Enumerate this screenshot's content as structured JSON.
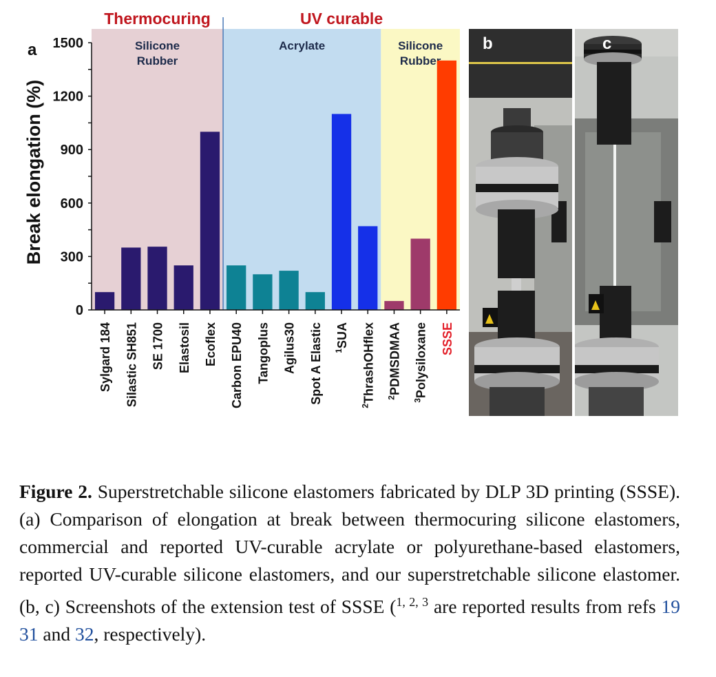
{
  "chart_data": {
    "type": "bar",
    "panel_label": "a",
    "ylabel": "Break elongation (%)",
    "ylim": [
      0,
      1500
    ],
    "yticks": [
      0,
      300,
      600,
      900,
      1200,
      1500
    ],
    "grid": false,
    "legend": "none",
    "categories": [
      {
        "sup": "",
        "text": "Sylgard 184"
      },
      {
        "sup": "",
        "text": "Silastic SH851"
      },
      {
        "sup": "",
        "text": "SE 1700"
      },
      {
        "sup": "",
        "text": "Elastosil"
      },
      {
        "sup": "",
        "text": "Ecoflex"
      },
      {
        "sup": "",
        "text": "Carbon EPU40"
      },
      {
        "sup": "",
        "text": "Tangoplus"
      },
      {
        "sup": "",
        "text": "Agilus30"
      },
      {
        "sup": "",
        "text": "Spot A Elastic"
      },
      {
        "sup": "1",
        "text": "SUA"
      },
      {
        "sup": "2",
        "text": "ThrashOHflex"
      },
      {
        "sup": "2",
        "text": "PDMSDMAA"
      },
      {
        "sup": "3",
        "text": "Polysiloxane"
      },
      {
        "sup": "",
        "text": "SSSE"
      }
    ],
    "values": [
      100,
      350,
      355,
      250,
      1000,
      250,
      200,
      220,
      100,
      1100,
      470,
      50,
      400,
      1400
    ],
    "bar_colors": [
      "#2a1a6e",
      "#2a1a6e",
      "#2a1a6e",
      "#2a1a6e",
      "#2a1a6e",
      "#0e8294",
      "#0e8294",
      "#0e8294",
      "#0e8294",
      "#1530e8",
      "#1530e8",
      "#9e3a6a",
      "#9e3a6a",
      "#ff3c00"
    ],
    "label_colors": [
      "#111111",
      "#111111",
      "#111111",
      "#111111",
      "#111111",
      "#111111",
      "#111111",
      "#111111",
      "#111111",
      "#111111",
      "#111111",
      "#111111",
      "#111111",
      "#e3202a"
    ],
    "regions": [
      {
        "name": "Silicone Rubber",
        "lines": [
          "Silicone",
          "Rubber"
        ],
        "from": 0,
        "to": 5,
        "color": "#e6d0d4"
      },
      {
        "name": "Acrylate",
        "lines": [
          "Acrylate"
        ],
        "from": 5,
        "to": 11,
        "color": "#c2dcf0"
      },
      {
        "name": "Silicone Rubber",
        "lines": [
          "Silicone",
          "Rubber"
        ],
        "from": 11,
        "to": 14,
        "color": "#fbf8c4"
      }
    ],
    "group_headers": [
      {
        "text": "Thermocuring",
        "color": "#c0161e",
        "from": 0,
        "to": 5
      },
      {
        "text": "UV curable",
        "color": "#c0161e",
        "from": 5,
        "to": 14
      }
    ],
    "divider_color": "#4a7ab8"
  },
  "photos": [
    {
      "label": "b",
      "icon": "tensile-test-photo-unstretched"
    },
    {
      "label": "c",
      "icon": "tensile-test-photo-stretched"
    }
  ],
  "caption": {
    "figure_label": "Figure 2.",
    "text_before_refs": " Superstretchable silicone elastomers fabricated by DLP 3D printing (SSSE). (a) Comparison of elongation at break between thermocuring silicone elastomers, commercial and reported UV-curable acrylate or polyurethane-based elastomers, reported UV-curable silicone elastomers, and our superstretchable silicone elastomer. (b, c) Screenshots of the extension test of SSSE (",
    "sup_text": "1, 2, 3",
    "after_sup": " are reported results from refs ",
    "ref1": "19",
    "sep1": " ",
    "ref2": "31",
    "and_text": " and ",
    "ref3": "32",
    "end_text": ", respectively)."
  }
}
